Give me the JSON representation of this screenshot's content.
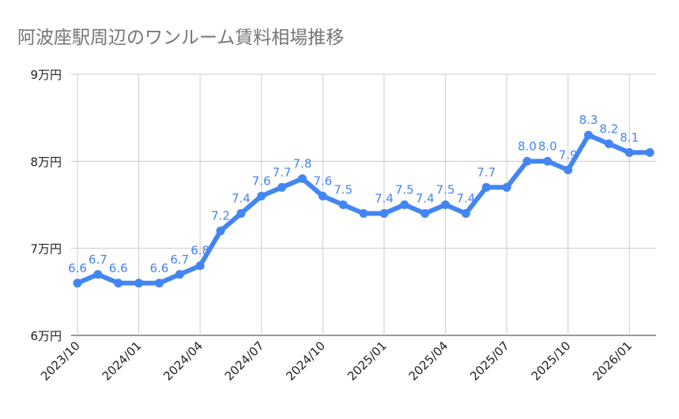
{
  "chart_data": {
    "type": "line",
    "title": "阿波座駅周辺のワンルーム賃料相場推移",
    "xlabel": "",
    "ylabel": "",
    "ylim": [
      6,
      9
    ],
    "y_ticks": [
      6,
      7,
      8,
      9
    ],
    "y_tick_labels": [
      "6万円",
      "7万円",
      "8万円",
      "9万円"
    ],
    "x": [
      "2023/10",
      "2023/11",
      "2023/12",
      "2024/01",
      "2024/02",
      "2024/03",
      "2024/04",
      "2024/05",
      "2024/06",
      "2024/07",
      "2024/08",
      "2024/09",
      "2024/10",
      "2024/11",
      "2024/12",
      "2025/01",
      "2025/02",
      "2025/03",
      "2025/04",
      "2025/05",
      "2025/06",
      "2025/07",
      "2025/08",
      "2025/09",
      "2025/10",
      "2025/11",
      "2025/12",
      "2026/01",
      "2026/02"
    ],
    "x_tick_labels": [
      "2023/10",
      "2024/01",
      "2024/04",
      "2024/07",
      "2024/10",
      "2025/01",
      "2025/04",
      "2025/07",
      "2025/10",
      "2026/01"
    ],
    "series": [
      {
        "values": [
          6.6,
          6.7,
          6.6,
          6.6,
          6.6,
          6.7,
          6.8,
          7.2,
          7.4,
          7.6,
          7.7,
          7.8,
          7.6,
          7.5,
          7.4,
          7.4,
          7.5,
          7.4,
          7.5,
          7.4,
          7.7,
          7.7,
          8.0,
          8.0,
          7.9,
          8.3,
          8.2,
          8.1,
          8.1
        ],
        "data_labels_shown": [
          1,
          1,
          1,
          0,
          1,
          1,
          1,
          1,
          1,
          1,
          1,
          1,
          1,
          1,
          0,
          1,
          1,
          1,
          1,
          1,
          1,
          0,
          1,
          1,
          1,
          1,
          1,
          1,
          0
        ],
        "color": "#4285f4"
      }
    ],
    "grid": true
  }
}
